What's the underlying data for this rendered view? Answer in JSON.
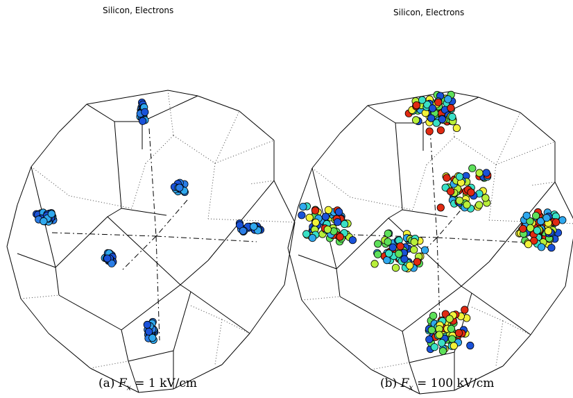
{
  "panels": [
    {
      "title": "Silicon, Electrons",
      "caption": {
        "prefix": "(a) ",
        "var": "F",
        "sub": "x",
        "rest": " = 1 kV/cm"
      },
      "colors": [
        "#1a52d8",
        "#2a7de6",
        "#2fa8ee"
      ]
    },
    {
      "title": "Silicon, Electrons",
      "caption": {
        "prefix": "(b) ",
        "var": "F",
        "sub": "x",
        "rest": " = 100 kV/cm"
      },
      "colors": [
        "#1a52d8",
        "#2fa8ee",
        "#39e0c6",
        "#5ee05a",
        "#b8ef3a",
        "#f2f23a",
        "#e02a12"
      ]
    }
  ]
}
